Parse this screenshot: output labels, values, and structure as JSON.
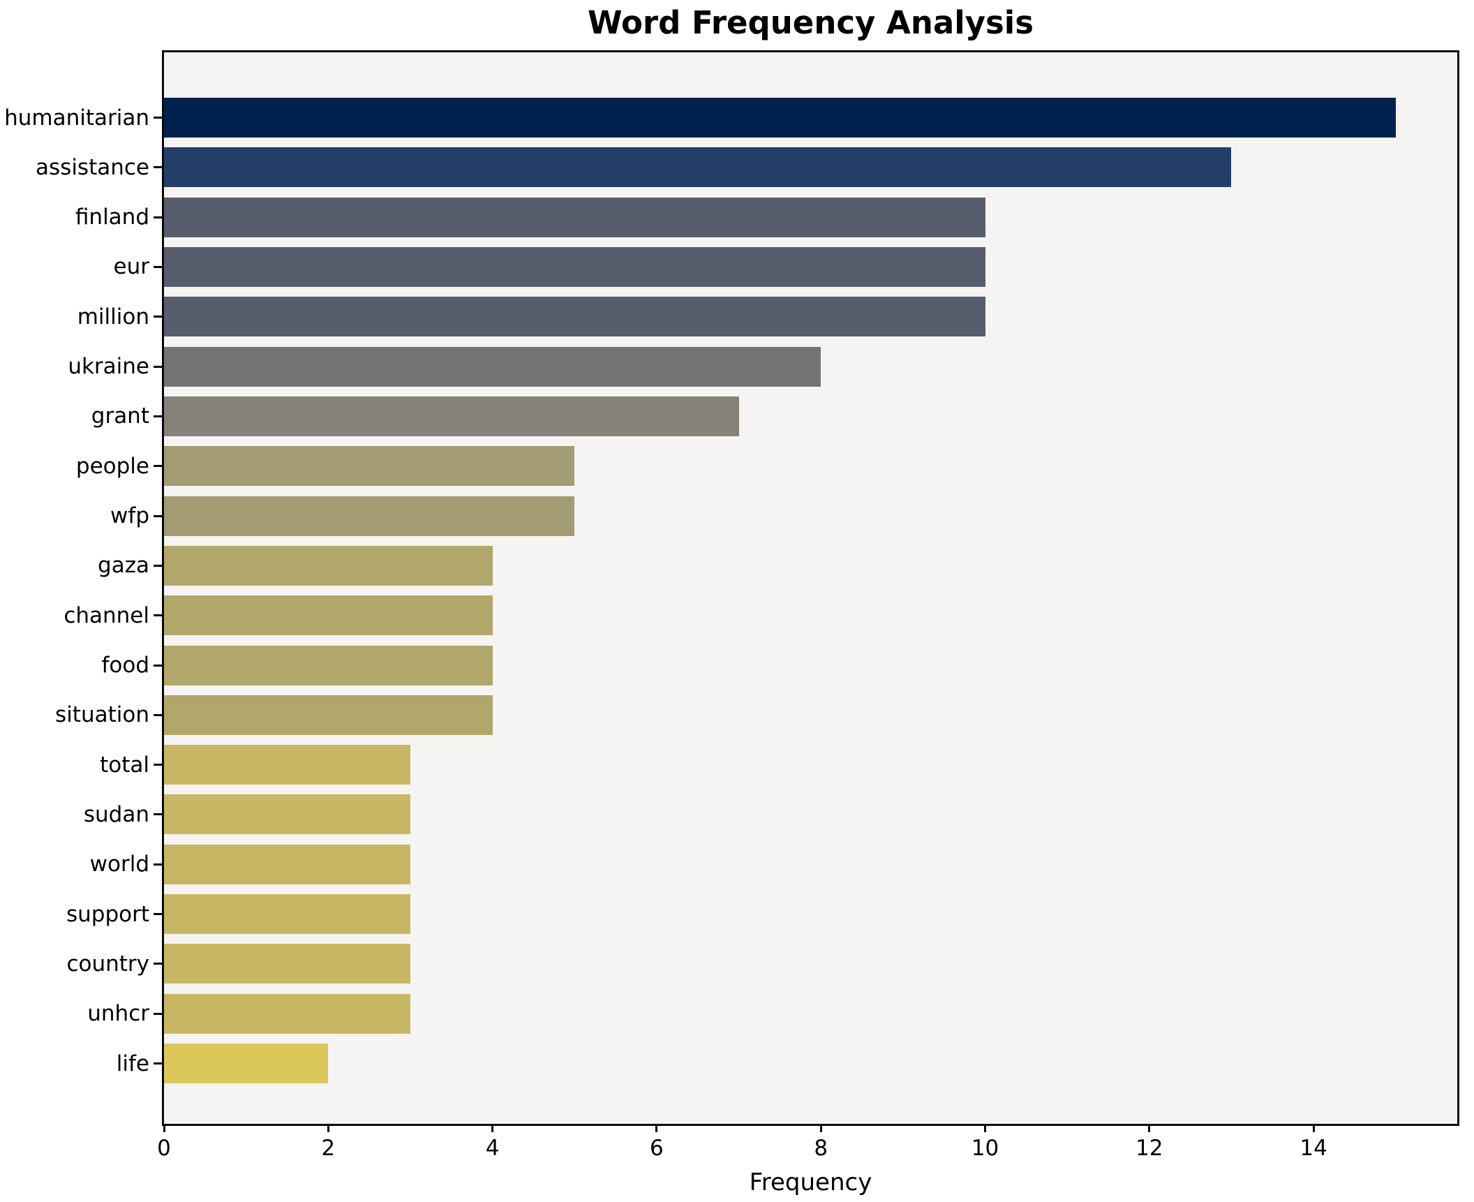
{
  "chart_data": {
    "type": "bar",
    "orientation": "horizontal",
    "title": "Word Frequency Analysis",
    "xlabel": "Frequency",
    "ylabel": "",
    "categories": [
      "humanitarian",
      "assistance",
      "finland",
      "eur",
      "million",
      "ukraine",
      "grant",
      "people",
      "wfp",
      "gaza",
      "channel",
      "food",
      "situation",
      "total",
      "sudan",
      "world",
      "support",
      "country",
      "unhcr",
      "life"
    ],
    "values": [
      15,
      13,
      10,
      10,
      10,
      8,
      7,
      5,
      5,
      4,
      4,
      4,
      4,
      3,
      3,
      3,
      3,
      3,
      3,
      2
    ],
    "bar_colors": [
      "#01224e",
      "#253f6b",
      "#575d6c",
      "#575d6c",
      "#575d6c",
      "#737475",
      "#858279",
      "#a39c73",
      "#a39c73",
      "#b2a76b",
      "#b2a76b",
      "#b2a76b",
      "#b2a76b",
      "#c7b765",
      "#c7b765",
      "#c7b765",
      "#c7b765",
      "#c7b765",
      "#c7b765",
      "#dcc75a"
    ],
    "xlim": [
      0,
      15.75
    ],
    "xticks": [
      0,
      2,
      4,
      6,
      8,
      10,
      12,
      14
    ],
    "grid": false,
    "legend": null,
    "plot_background": "#f5f4f2",
    "figure_background": "#ffffff",
    "axis_color": "#0b0b0b"
  }
}
